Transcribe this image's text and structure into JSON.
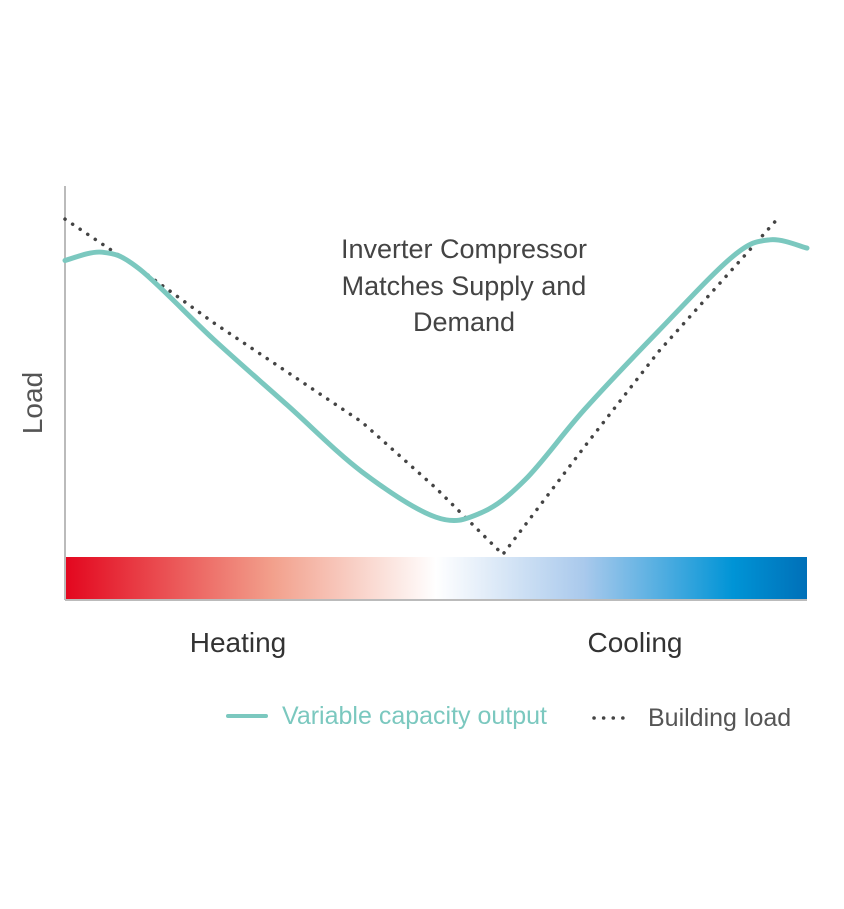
{
  "chart_data": {
    "type": "line",
    "title": "",
    "ylabel": "Load",
    "xlabel": "",
    "annotation": [
      "Inverter Compressor",
      "Matches Supply and",
      "Demand"
    ],
    "band_labels": {
      "left": "Heating",
      "right": "Cooling"
    },
    "xlim": [
      0,
      100
    ],
    "ylim": [
      0,
      100
    ],
    "grid": false,
    "legend_position": "bottom-right",
    "gradient_colors": [
      "#e3061e",
      "#f2a08c",
      "#ffffff",
      "#a9c9ec",
      "#0094d6",
      "#0070b8"
    ],
    "series": [
      {
        "name": "Variable capacity output",
        "style": "solid",
        "color": "#7bc8bf",
        "x": [
          0,
          5,
          10,
          20,
          30,
          40,
          50,
          56,
          62,
          70,
          80,
          90,
          95,
          100
        ],
        "y": [
          82,
          84,
          80,
          63,
          47,
          31,
          20,
          21,
          29,
          46,
          65,
          83,
          87,
          85
        ]
      },
      {
        "name": "Building load",
        "style": "dotted",
        "color": "#444444",
        "x": [
          0,
          10,
          20,
          30,
          40,
          50,
          59,
          70,
          80,
          90,
          96
        ],
        "y": [
          92,
          80,
          67,
          55,
          43,
          27,
          11,
          37,
          60,
          80,
          92
        ]
      }
    ]
  }
}
